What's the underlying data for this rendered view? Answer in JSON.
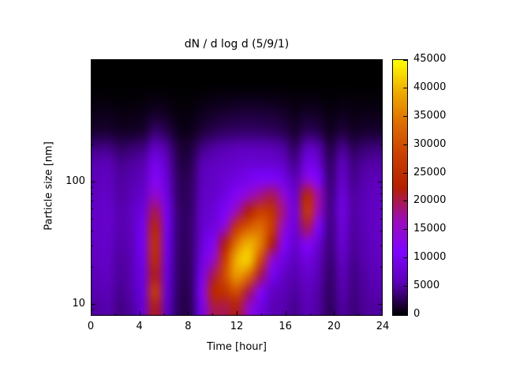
{
  "chart_data": {
    "type": "heatmap",
    "title": "dN / d log d (5/9/1)",
    "xlabel": "Time [hour]",
    "ylabel": "Particle size [nm]",
    "x_range": [
      0,
      24
    ],
    "y_range": [
      8,
      1000
    ],
    "y_scale": "log",
    "zlim": [
      0,
      45000
    ],
    "x_ticks": [
      0,
      4,
      8,
      12,
      16,
      20,
      24
    ],
    "x_minor_ticks": [
      2,
      6,
      10,
      14,
      18,
      22
    ],
    "y_ticks": [
      10,
      100
    ],
    "y_minor_ticks": [
      9,
      20,
      30,
      40,
      50,
      60,
      70,
      80,
      90,
      200,
      300,
      400,
      500,
      600,
      700,
      800,
      900
    ],
    "colorbar_ticks": [
      0,
      5000,
      10000,
      15000,
      20000,
      25000,
      30000,
      35000,
      40000,
      45000
    ],
    "palette": [
      {
        "pos": 0.0,
        "color": "#000000"
      },
      {
        "pos": 0.125,
        "color": "#5a00b4"
      },
      {
        "pos": 0.25,
        "color": "#8004ff"
      },
      {
        "pos": 0.375,
        "color": "#9c0db4"
      },
      {
        "pos": 0.5,
        "color": "#b42000"
      },
      {
        "pos": 0.625,
        "color": "#ca3e00"
      },
      {
        "pos": 0.75,
        "color": "#dd6c00"
      },
      {
        "pos": 0.875,
        "color": "#efab00"
      },
      {
        "pos": 1.0,
        "color": "#ffff00"
      }
    ],
    "x": [
      0,
      1,
      2,
      3,
      4,
      5,
      6,
      7,
      8,
      9,
      10,
      11,
      12,
      13,
      14,
      15,
      16,
      17,
      18,
      19,
      20,
      21,
      22,
      23,
      24
    ],
    "y": [
      1000,
      700,
      450,
      300,
      200,
      140,
      100,
      75,
      55,
      40,
      30,
      22,
      17,
      13,
      10,
      8
    ],
    "values": [
      [
        0,
        0,
        0,
        0,
        0,
        0,
        0,
        0,
        0,
        0,
        0,
        0,
        0,
        0,
        0,
        0,
        0,
        0,
        0,
        0,
        0,
        0,
        0,
        0,
        0
      ],
      [
        0,
        0,
        0,
        0,
        0,
        0,
        0,
        0,
        0,
        0,
        0,
        0,
        0,
        0,
        0,
        0,
        0,
        0,
        0,
        0,
        0,
        0,
        0,
        0,
        0
      ],
      [
        300,
        300,
        200,
        200,
        300,
        500,
        400,
        200,
        200,
        400,
        600,
        700,
        800,
        800,
        800,
        700,
        600,
        400,
        500,
        400,
        200,
        400,
        300,
        300,
        300
      ],
      [
        800,
        900,
        600,
        700,
        800,
        1500,
        1100,
        500,
        500,
        1000,
        1400,
        1700,
        1900,
        2000,
        1900,
        1800,
        1500,
        900,
        1400,
        1200,
        600,
        1000,
        700,
        800,
        800
      ],
      [
        1500,
        1600,
        1200,
        1300,
        1500,
        3500,
        2500,
        900,
        800,
        1800,
        2500,
        3000,
        3200,
        3300,
        3200,
        3000,
        2500,
        1500,
        2800,
        2400,
        1000,
        2000,
        1200,
        1500,
        1500
      ],
      [
        4000,
        4200,
        3000,
        3500,
        4000,
        7000,
        5000,
        2000,
        1800,
        4000,
        5000,
        5500,
        6000,
        6200,
        6000,
        5800,
        5000,
        3000,
        6500,
        5500,
        2200,
        4500,
        2800,
        3500,
        3800
      ],
      [
        5500,
        6000,
        4500,
        5000,
        5500,
        10000,
        7000,
        2500,
        2300,
        5500,
        6500,
        7000,
        7500,
        8000,
        8000,
        7800,
        7000,
        4500,
        9500,
        8000,
        3000,
        6500,
        4000,
        5000,
        5200
      ],
      [
        6000,
        6500,
        5000,
        5500,
        6500,
        12000,
        8000,
        3000,
        2800,
        6000,
        7000,
        8000,
        9000,
        10000,
        11000,
        11000,
        9500,
        6000,
        14000,
        11000,
        3500,
        7500,
        4500,
        5500,
        6000
      ],
      [
        6500,
        7000,
        5200,
        6000,
        7500,
        15000,
        9000,
        3200,
        3000,
        6500,
        7500,
        9000,
        12000,
        15000,
        18000,
        20000,
        15000,
        8000,
        24000,
        17000,
        4000,
        8500,
        5000,
        6000,
        6500
      ],
      [
        7000,
        7500,
        5500,
        6500,
        9000,
        20000,
        10000,
        3500,
        3200,
        7000,
        8000,
        11000,
        17000,
        22000,
        28000,
        26000,
        18000,
        9000,
        27000,
        16000,
        4200,
        9000,
        5200,
        6200,
        7000
      ],
      [
        7000,
        7500,
        5500,
        6500,
        10000,
        24000,
        10000,
        3500,
        3300,
        7500,
        9000,
        15000,
        27000,
        32000,
        34000,
        28000,
        15000,
        8500,
        20000,
        11000,
        4000,
        8500,
        5000,
        6000,
        7000
      ],
      [
        6800,
        7200,
        5300,
        6300,
        10000,
        26000,
        9500,
        3400,
        3200,
        8000,
        12000,
        22000,
        35000,
        40000,
        36000,
        22000,
        12000,
        7500,
        12000,
        8000,
        3800,
        8000,
        4800,
        5800,
        6800
      ],
      [
        6500,
        7000,
        5000,
        6000,
        9500,
        25000,
        9000,
        3300,
        3100,
        9000,
        15000,
        28000,
        40000,
        42000,
        30000,
        15000,
        9000,
        6500,
        9000,
        6500,
        3500,
        7000,
        4500,
        5500,
        6500
      ],
      [
        6000,
        6500,
        4800,
        5800,
        9000,
        22000,
        8500,
        3200,
        3000,
        10000,
        20000,
        30000,
        38000,
        34000,
        20000,
        10000,
        7000,
        5500,
        7500,
        5800,
        3200,
        6000,
        4200,
        5200,
        6000
      ],
      [
        5500,
        6000,
        4500,
        5500,
        8500,
        28000,
        8000,
        3000,
        2800,
        12000,
        24000,
        26000,
        30000,
        20000,
        12000,
        7000,
        6000,
        5000,
        6500,
        5200,
        3000,
        5500,
        4000,
        5000,
        5500
      ],
      [
        5000,
        5500,
        4200,
        5000,
        8000,
        22000,
        7000,
        2800,
        2600,
        10000,
        20000,
        20000,
        22000,
        15000,
        9000,
        6000,
        5500,
        4500,
        6000,
        5000,
        2800,
        5000,
        3800,
        4800,
        5000
      ]
    ]
  }
}
